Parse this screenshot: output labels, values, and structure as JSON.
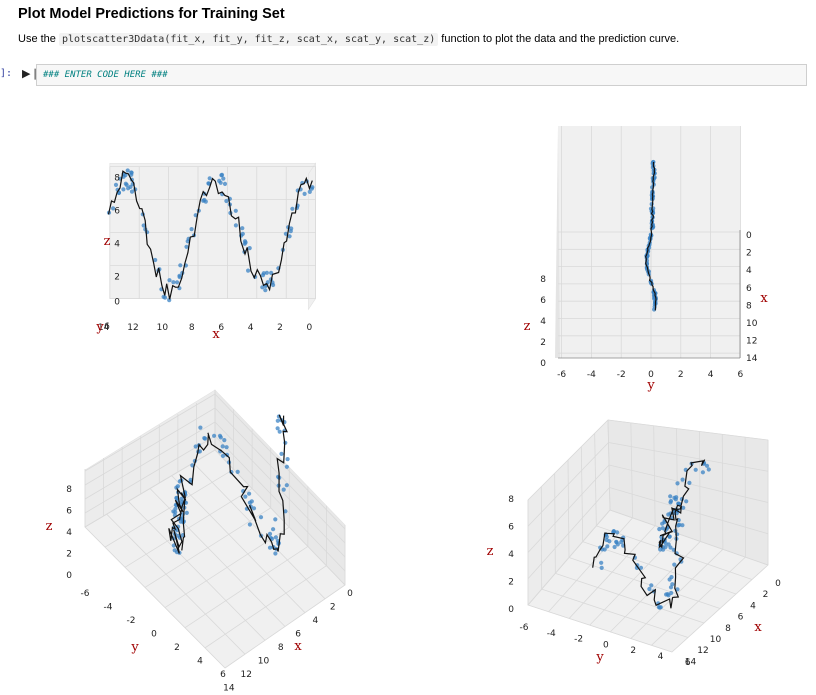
{
  "heading": "Plot Model Predictions for Training Set",
  "instruction": {
    "before": "Use the ",
    "code": "plotscatter3Ddata(fit_x, fit_y, fit_z, scat_x, scat_y, scat_z)",
    "after": " function to plot the data and the prediction curve."
  },
  "cell": {
    "prompt": "]:",
    "code": "### ENTER CODE HERE ###"
  },
  "colors": {
    "points": "#3b83c4",
    "curve": "#111111",
    "pane": "#f0f0f0",
    "grid": "#d9d9d9",
    "label": "#a00000"
  },
  "icons": {
    "run": "step-forward-icon"
  },
  "chart_data": [
    {
      "type": "scatter",
      "view": "front",
      "xlabel": "x",
      "ylabel": "y",
      "zlabel": "z",
      "x_ticks": [
        "14",
        "12",
        "10",
        "8",
        "6",
        "4",
        "2",
        "0"
      ],
      "z_ticks": [
        "0",
        "2",
        "4",
        "6",
        "8"
      ],
      "y_ticks": [
        "6"
      ],
      "xlim": [
        0,
        14
      ],
      "zlim": [
        0,
        8
      ]
    },
    {
      "type": "scatter",
      "view": "top",
      "xlabel": "x",
      "ylabel": "y",
      "zlabel": "z",
      "x_ticks": [
        "0",
        "2",
        "4",
        "6",
        "8",
        "10",
        "12",
        "14"
      ],
      "y_ticks": [
        "-6",
        "-4",
        "-2",
        "0",
        "2",
        "4",
        "6"
      ],
      "z_ticks": [
        "0",
        "2",
        "4",
        "6",
        "8"
      ],
      "xlim": [
        0,
        14
      ],
      "ylim": [
        -6,
        6
      ],
      "zlim": [
        0,
        8
      ]
    },
    {
      "type": "scatter",
      "view": "isometric",
      "xlabel": "x",
      "ylabel": "y",
      "zlabel": "z",
      "x_ticks": [
        "0",
        "2",
        "4",
        "6",
        "8",
        "10",
        "12",
        "14"
      ],
      "y_ticks": [
        "-6",
        "-4",
        "-2",
        "0",
        "2",
        "4",
        "6"
      ],
      "z_ticks": [
        "0",
        "2",
        "4",
        "6",
        "8"
      ],
      "xlim": [
        0,
        14
      ],
      "ylim": [
        -6,
        6
      ],
      "zlim": [
        0,
        8
      ]
    },
    {
      "type": "scatter",
      "view": "perspective",
      "xlabel": "x",
      "ylabel": "y",
      "zlabel": "z",
      "x_ticks": [
        "0",
        "2",
        "4",
        "6",
        "8",
        "10",
        "12",
        "14"
      ],
      "y_ticks": [
        "-6",
        "-4",
        "-2",
        "0",
        "2",
        "4",
        "6"
      ],
      "z_ticks": [
        "0",
        "2",
        "4",
        "6",
        "8"
      ],
      "xlim": [
        0,
        14
      ],
      "ylim": [
        -6,
        6
      ],
      "zlim": [
        0,
        8
      ]
    }
  ]
}
